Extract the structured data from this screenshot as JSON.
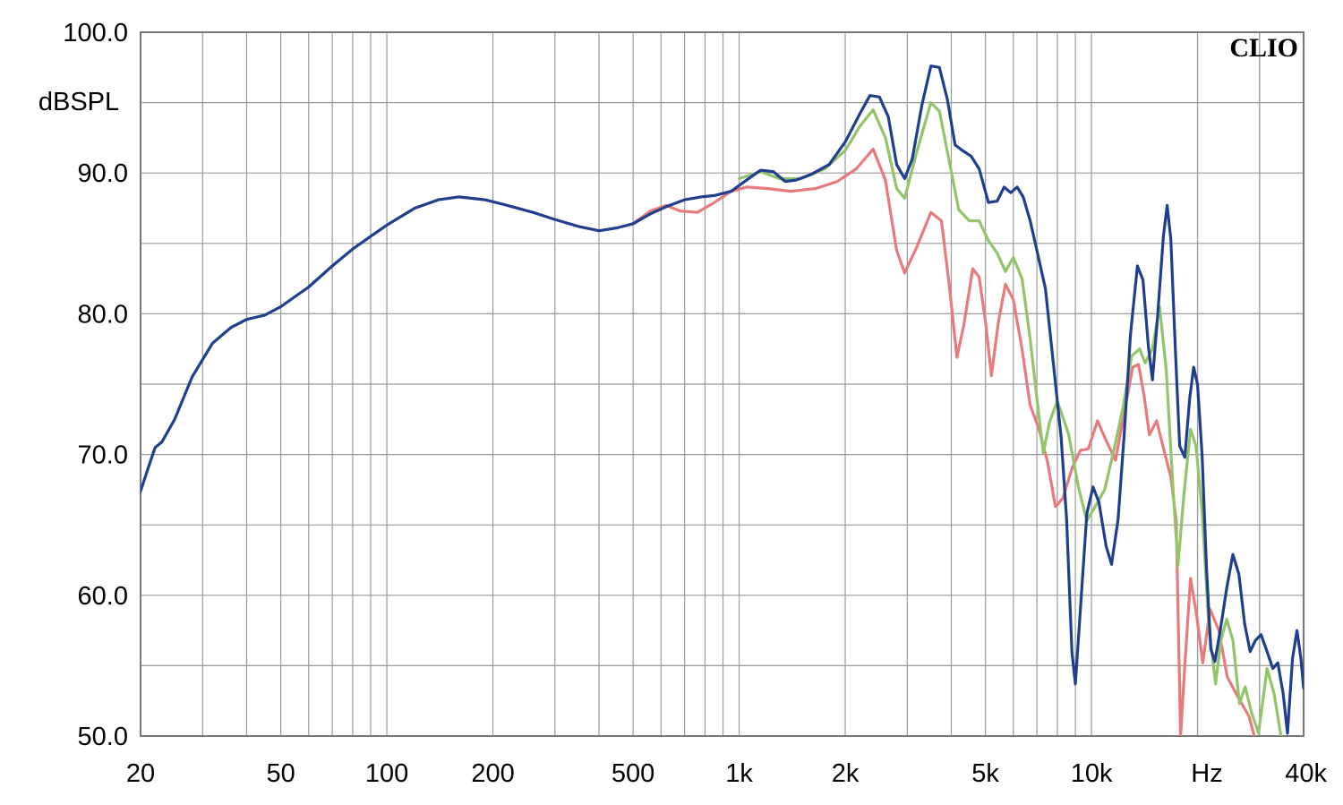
{
  "chart_data": {
    "type": "line",
    "brand": "CLIO",
    "ylabel": "dBSPL",
    "xunit": "Hz",
    "xscale": "log",
    "xlim": [
      20,
      40000
    ],
    "ylim": [
      50,
      100
    ],
    "grid": true,
    "legend": "none",
    "x_ticks": [
      {
        "value": 20,
        "label": "20"
      },
      {
        "value": 50,
        "label": "50"
      },
      {
        "value": 100,
        "label": "100"
      },
      {
        "value": 200,
        "label": "200"
      },
      {
        "value": 500,
        "label": "500"
      },
      {
        "value": 1000,
        "label": "1k"
      },
      {
        "value": 2000,
        "label": "2k"
      },
      {
        "value": 5000,
        "label": "5k"
      },
      {
        "value": 10000,
        "label": "10k"
      },
      {
        "value": 40000,
        "label": "40k"
      }
    ],
    "y_ticks": [
      {
        "value": 100,
        "label": "100.0"
      },
      {
        "value": 90,
        "label": "90.0"
      },
      {
        "value": 80,
        "label": "80.0"
      },
      {
        "value": 70,
        "label": "70.0"
      },
      {
        "value": 60,
        "label": "60.0"
      },
      {
        "value": 50,
        "label": "50.0"
      }
    ],
    "series": [
      {
        "color": "#e87a7e",
        "points": [
          [
            500,
            86.4
          ],
          [
            560,
            87.3
          ],
          [
            620,
            87.7
          ],
          [
            680,
            87.3
          ],
          [
            760,
            87.2
          ],
          [
            850,
            87.9
          ],
          [
            950,
            88.7
          ],
          [
            1050,
            89.0
          ],
          [
            1200,
            88.9
          ],
          [
            1400,
            88.7
          ],
          [
            1650,
            88.9
          ],
          [
            1900,
            89.4
          ],
          [
            2150,
            90.3
          ],
          [
            2400,
            91.7
          ],
          [
            2600,
            89.5
          ],
          [
            2800,
            84.5
          ],
          [
            2950,
            82.9
          ],
          [
            3200,
            84.8
          ],
          [
            3500,
            87.2
          ],
          [
            3750,
            86.6
          ],
          [
            3950,
            82.0
          ],
          [
            4150,
            76.9
          ],
          [
            4350,
            79.3
          ],
          [
            4600,
            83.2
          ],
          [
            4800,
            82.6
          ],
          [
            5000,
            79.5
          ],
          [
            5200,
            75.6
          ],
          [
            5450,
            79.5
          ],
          [
            5700,
            82.1
          ],
          [
            6000,
            81.0
          ],
          [
            6350,
            77.5
          ],
          [
            6700,
            73.5
          ],
          [
            7100,
            71.8
          ],
          [
            7500,
            69.5
          ],
          [
            7900,
            66.3
          ],
          [
            8300,
            66.9
          ],
          [
            8800,
            69.0
          ],
          [
            9300,
            70.3
          ],
          [
            9800,
            70.4
          ],
          [
            10400,
            72.4
          ],
          [
            11000,
            71.0
          ],
          [
            11700,
            69.6
          ],
          [
            12400,
            73.0
          ],
          [
            13100,
            76.2
          ],
          [
            13600,
            76.4
          ],
          [
            14100,
            74.2
          ],
          [
            14600,
            71.4
          ],
          [
            15300,
            72.4
          ],
          [
            16100,
            70.2
          ],
          [
            16800,
            68.4
          ],
          [
            17400,
            65.3
          ],
          [
            17900,
            50.0
          ],
          [
            18400,
            55.0
          ],
          [
            19100,
            61.2
          ],
          [
            19900,
            58.5
          ],
          [
            20700,
            55.2
          ],
          [
            21700,
            59.0
          ],
          [
            23000,
            57.5
          ],
          [
            24300,
            54.2
          ],
          [
            26000,
            52.8
          ],
          [
            28000,
            51.4
          ],
          [
            29000,
            50.0
          ]
        ]
      },
      {
        "color": "#93c46a",
        "points": [
          [
            1000,
            89.6
          ],
          [
            1150,
            90.1
          ],
          [
            1300,
            89.6
          ],
          [
            1500,
            89.6
          ],
          [
            1750,
            90.3
          ],
          [
            2000,
            91.6
          ],
          [
            2200,
            93.3
          ],
          [
            2400,
            94.5
          ],
          [
            2600,
            92.5
          ],
          [
            2800,
            88.9
          ],
          [
            2950,
            88.2
          ],
          [
            3200,
            91.6
          ],
          [
            3500,
            95.0
          ],
          [
            3700,
            94.4
          ],
          [
            3950,
            90.8
          ],
          [
            4200,
            87.4
          ],
          [
            4500,
            86.6
          ],
          [
            4800,
            86.6
          ],
          [
            5100,
            85.2
          ],
          [
            5400,
            84.3
          ],
          [
            5700,
            83.0
          ],
          [
            6000,
            84.0
          ],
          [
            6350,
            82.5
          ],
          [
            6700,
            78.2
          ],
          [
            7000,
            74.0
          ],
          [
            7300,
            70.1
          ],
          [
            7600,
            72.3
          ],
          [
            8000,
            73.8
          ],
          [
            8600,
            71.5
          ],
          [
            9200,
            67.6
          ],
          [
            9700,
            65.3
          ],
          [
            10300,
            66.4
          ],
          [
            10900,
            67.5
          ],
          [
            11600,
            70.4
          ],
          [
            12300,
            73.4
          ],
          [
            13000,
            77.0
          ],
          [
            13700,
            77.5
          ],
          [
            14200,
            76.5
          ],
          [
            14900,
            77.5
          ],
          [
            15600,
            80.5
          ],
          [
            16300,
            76.0
          ],
          [
            17000,
            68.0
          ],
          [
            17600,
            62.1
          ],
          [
            18300,
            67.2
          ],
          [
            19100,
            71.8
          ],
          [
            19800,
            70.6
          ],
          [
            20600,
            66.0
          ],
          [
            21500,
            58.0
          ],
          [
            22500,
            53.7
          ],
          [
            23300,
            56.8
          ],
          [
            24200,
            58.3
          ],
          [
            25200,
            56.8
          ],
          [
            26300,
            52.3
          ],
          [
            27300,
            53.5
          ],
          [
            28500,
            51.6
          ],
          [
            29800,
            50.2
          ],
          [
            31500,
            54.8
          ],
          [
            33000,
            53.0
          ],
          [
            34500,
            50.0
          ]
        ]
      },
      {
        "color": "#1f3f8e",
        "points": [
          [
            20,
            67.4
          ],
          [
            21,
            69.0
          ],
          [
            22,
            70.5
          ],
          [
            23,
            70.9
          ],
          [
            25,
            72.5
          ],
          [
            28,
            75.5
          ],
          [
            32,
            77.9
          ],
          [
            36,
            79.0
          ],
          [
            40,
            79.6
          ],
          [
            45,
            79.9
          ],
          [
            50,
            80.5
          ],
          [
            60,
            81.9
          ],
          [
            70,
            83.4
          ],
          [
            80,
            84.6
          ],
          [
            90,
            85.5
          ],
          [
            100,
            86.3
          ],
          [
            120,
            87.5
          ],
          [
            140,
            88.1
          ],
          [
            160,
            88.3
          ],
          [
            190,
            88.1
          ],
          [
            220,
            87.7
          ],
          [
            260,
            87.2
          ],
          [
            300,
            86.7
          ],
          [
            350,
            86.2
          ],
          [
            400,
            85.9
          ],
          [
            450,
            86.1
          ],
          [
            500,
            86.4
          ],
          [
            560,
            87.1
          ],
          [
            620,
            87.6
          ],
          [
            700,
            88.1
          ],
          [
            780,
            88.3
          ],
          [
            850,
            88.4
          ],
          [
            950,
            88.7
          ],
          [
            1050,
            89.5
          ],
          [
            1150,
            90.2
          ],
          [
            1250,
            90.1
          ],
          [
            1350,
            89.4
          ],
          [
            1450,
            89.5
          ],
          [
            1600,
            89.9
          ],
          [
            1800,
            90.6
          ],
          [
            2000,
            92.2
          ],
          [
            2200,
            94.2
          ],
          [
            2350,
            95.5
          ],
          [
            2500,
            95.4
          ],
          [
            2650,
            94.0
          ],
          [
            2800,
            90.6
          ],
          [
            2950,
            89.6
          ],
          [
            3100,
            91.0
          ],
          [
            3300,
            94.8
          ],
          [
            3500,
            97.6
          ],
          [
            3700,
            97.5
          ],
          [
            3900,
            95.2
          ],
          [
            4100,
            92.0
          ],
          [
            4300,
            91.6
          ],
          [
            4550,
            91.2
          ],
          [
            4800,
            90.3
          ],
          [
            5100,
            87.9
          ],
          [
            5400,
            88.0
          ],
          [
            5650,
            89.0
          ],
          [
            5900,
            88.6
          ],
          [
            6150,
            89.0
          ],
          [
            6400,
            88.3
          ],
          [
            6700,
            86.6
          ],
          [
            7000,
            84.5
          ],
          [
            7400,
            81.8
          ],
          [
            7800,
            76.4
          ],
          [
            8200,
            71.2
          ],
          [
            8500,
            65.4
          ],
          [
            8800,
            56.0
          ],
          [
            9000,
            53.7
          ],
          [
            9300,
            59.0
          ],
          [
            9700,
            65.8
          ],
          [
            10100,
            67.7
          ],
          [
            10500,
            66.6
          ],
          [
            11000,
            63.5
          ],
          [
            11400,
            62.2
          ],
          [
            11900,
            65.4
          ],
          [
            12400,
            71.6
          ],
          [
            12900,
            78.5
          ],
          [
            13500,
            83.4
          ],
          [
            14000,
            82.4
          ],
          [
            14500,
            77.7
          ],
          [
            14900,
            75.3
          ],
          [
            15400,
            79.8
          ],
          [
            16000,
            85.5
          ],
          [
            16400,
            87.7
          ],
          [
            16800,
            85.3
          ],
          [
            17300,
            77.4
          ],
          [
            17800,
            70.6
          ],
          [
            18400,
            69.8
          ],
          [
            19000,
            74.0
          ],
          [
            19500,
            76.2
          ],
          [
            20000,
            75.0
          ],
          [
            20600,
            70.0
          ],
          [
            21200,
            62.0
          ],
          [
            21800,
            56.2
          ],
          [
            22400,
            55.3
          ],
          [
            23200,
            57.5
          ],
          [
            24200,
            60.5
          ],
          [
            25200,
            62.9
          ],
          [
            26200,
            61.5
          ],
          [
            27200,
            58.0
          ],
          [
            28200,
            56.0
          ],
          [
            29200,
            56.8
          ],
          [
            30300,
            57.2
          ],
          [
            31500,
            56.0
          ],
          [
            32700,
            54.8
          ],
          [
            33800,
            55.2
          ],
          [
            35000,
            53.0
          ],
          [
            36000,
            50.2
          ],
          [
            37200,
            55.5
          ],
          [
            38300,
            57.5
          ],
          [
            39300,
            55.5
          ],
          [
            40000,
            53.4
          ]
        ]
      }
    ]
  }
}
